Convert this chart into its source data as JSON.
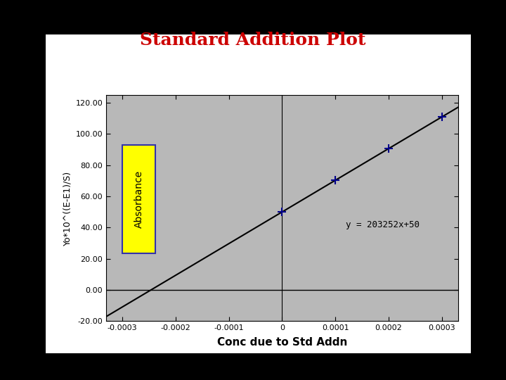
{
  "title": "Standard Addition Plot",
  "title_color": "#cc0000",
  "title_fontsize": 18,
  "xlabel": "Conc due to Std Addn",
  "ylabel": "Yo*10^((E-E1)/S)",
  "ylabel_label_on_box": "Absorbance",
  "slope": 203252,
  "intercept": 50,
  "equation": "y = 203252x+50",
  "x_data": [
    0.0,
    0.0001,
    0.0002,
    0.0003
  ],
  "xlim": [
    -0.00033,
    0.00033
  ],
  "ylim": [
    -20,
    125
  ],
  "xticks": [
    -0.0003,
    -0.0002,
    -0.0001,
    0,
    0.0001,
    0.0002,
    0.0003
  ],
  "yticks": [
    -20.0,
    0.0,
    20.0,
    40.0,
    60.0,
    80.0,
    100.0,
    120.0
  ],
  "background_outer": "#000000",
  "background_slide": "#ffffff",
  "background_plot": "#b8b8b8",
  "data_color": "#00008b",
  "line_color": "#000000",
  "marker": "+",
  "marker_size": 8,
  "marker_linewidth": 1.5,
  "line_width": 1.5,
  "annotation_color": "#000000",
  "annotation_fontsize": 9,
  "xlabel_fontsize": 11,
  "ylabel_fontsize": 9,
  "tick_fontsize": 8,
  "box_label_color": "#000000",
  "box_facecolor": "#ffff00",
  "box_edgecolor": "#3333aa"
}
